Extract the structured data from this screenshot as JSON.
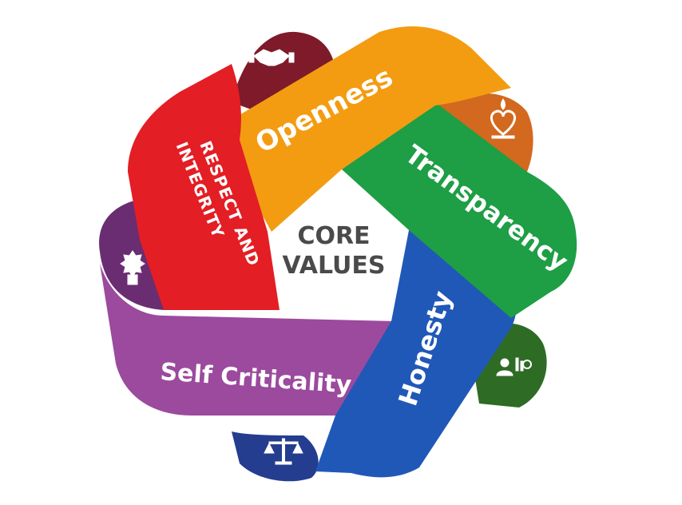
{
  "center": {
    "line1": "CORE",
    "line2": "VALUES"
  },
  "values": [
    {
      "label": "Openness",
      "color": "#F39C12",
      "dark": "#D2691E",
      "icon": "heart-candle-icon"
    },
    {
      "label": "Transparency",
      "color": "#1E9E45",
      "dark": "#2E6B25",
      "icon": "people-chart-icon"
    },
    {
      "label": "Honesty",
      "color": "#2058B8",
      "dark": "#243D8F",
      "icon": "scales-icon"
    },
    {
      "label": "Self Criticality",
      "color": "#9B4A9E",
      "dark": "#6A2D72",
      "icon": "award-ribbon-icon"
    },
    {
      "label_line1": "Respect and",
      "label_line2": "Integrity",
      "color": "#E31E24",
      "dark": "#7E1A2A",
      "icon": "handshake-icon"
    }
  ]
}
